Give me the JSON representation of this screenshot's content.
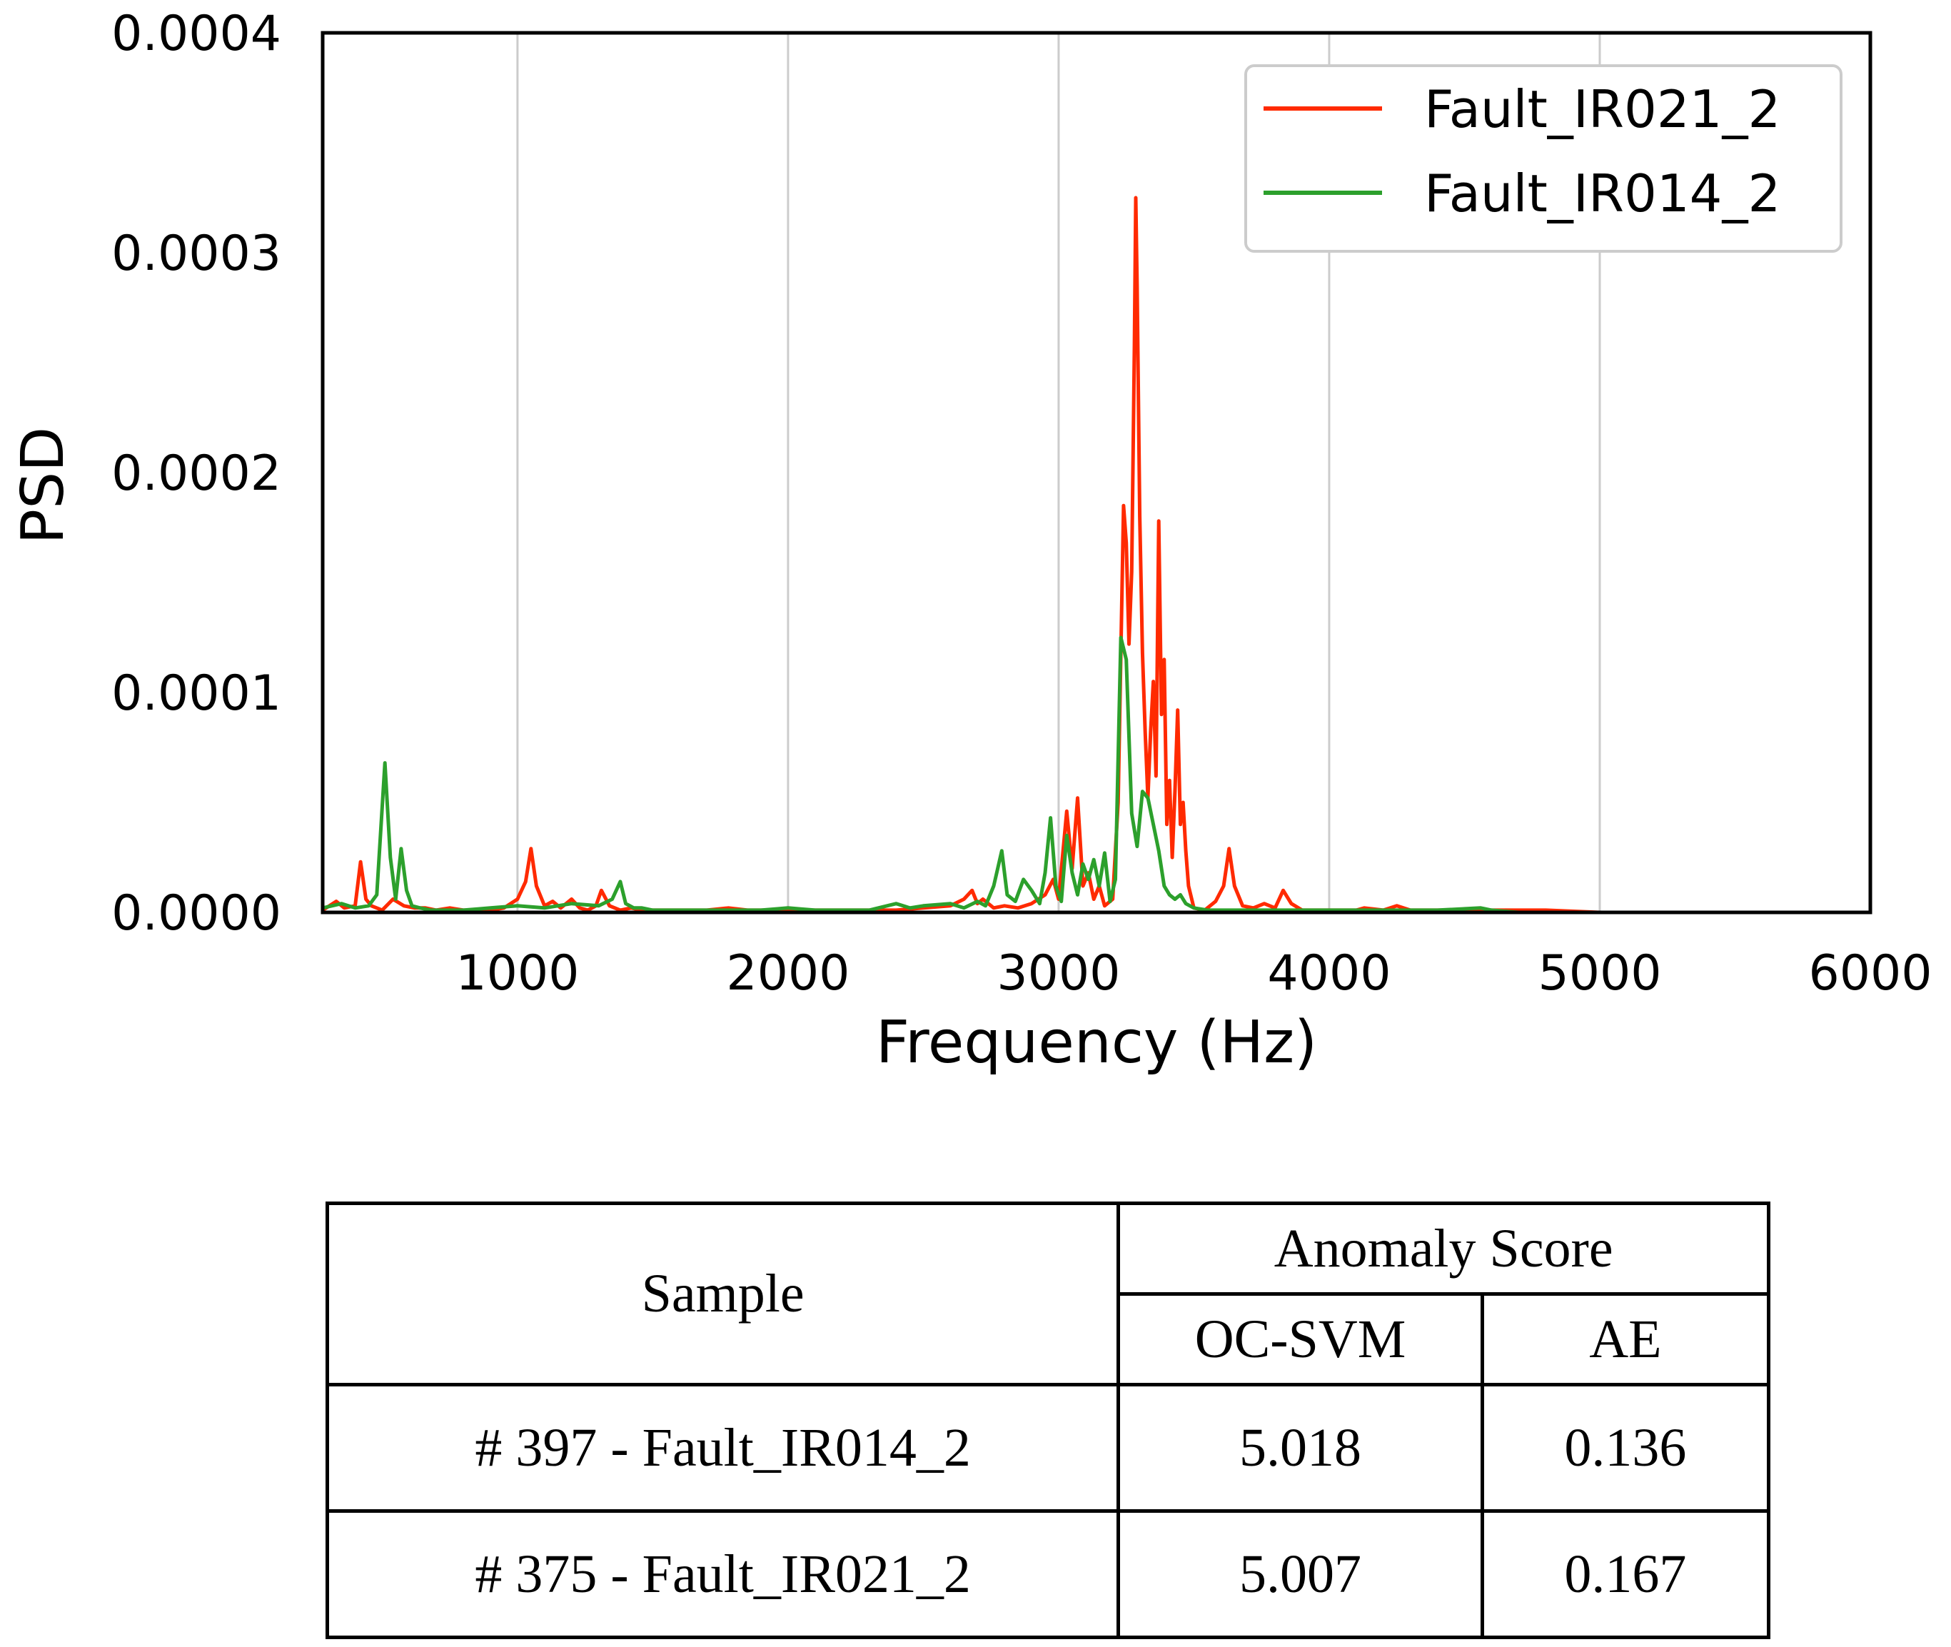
{
  "chart_data": {
    "type": "line",
    "title": "",
    "xlabel": "Frequency (Hz)",
    "ylabel": "PSD",
    "xlim": [
      280,
      6000
    ],
    "ylim": [
      0,
      0.0004
    ],
    "xticks": [
      1000,
      2000,
      3000,
      4000,
      5000,
      6000
    ],
    "xtick_labels": [
      "1000",
      "2000",
      "3000",
      "4000",
      "5000",
      "6000"
    ],
    "yticks": [
      0,
      0.0001,
      0.0002,
      0.0003,
      0.0004
    ],
    "ytick_labels": [
      "0.0000",
      "0.0001",
      "0.0002",
      "0.0003",
      "0.0004"
    ],
    "grid": "vertical",
    "legend_position": "top-right",
    "series": [
      {
        "name": "Fault_IR021_2",
        "color": "#ff2a00",
        "x": [
          280,
          330,
          360,
          400,
          420,
          440,
          460,
          480,
          500,
          540,
          580,
          620,
          660,
          700,
          750,
          800,
          850,
          900,
          950,
          1000,
          1030,
          1050,
          1070,
          1100,
          1130,
          1160,
          1200,
          1230,
          1260,
          1290,
          1310,
          1340,
          1380,
          1420,
          1460,
          1500,
          1600,
          1700,
          1780,
          1850,
          2000,
          2100,
          2200,
          2300,
          2400,
          2500,
          2600,
          2650,
          2680,
          2700,
          2720,
          2760,
          2800,
          2850,
          2900,
          2950,
          2980,
          3000,
          3030,
          3050,
          3070,
          3090,
          3110,
          3130,
          3150,
          3170,
          3200,
          3220,
          3240,
          3250,
          3260,
          3270,
          3280,
          3285,
          3290,
          3300,
          3310,
          3320,
          3330,
          3340,
          3350,
          3360,
          3370,
          3380,
          3390,
          3400,
          3410,
          3420,
          3430,
          3440,
          3450,
          3460,
          3470,
          3480,
          3500,
          3540,
          3580,
          3610,
          3630,
          3650,
          3680,
          3720,
          3760,
          3800,
          3830,
          3860,
          3900,
          4000,
          4100,
          4130,
          4200,
          4250,
          4300,
          4400,
          4500,
          4600,
          4700,
          4800,
          5000,
          5500,
          6000
        ],
        "y": [
          1e-06,
          5e-06,
          2e-06,
          3e-06,
          2.3e-05,
          6e-06,
          3e-06,
          2e-06,
          1e-06,
          6e-06,
          3e-06,
          2e-06,
          2e-06,
          1e-06,
          2e-06,
          1e-06,
          1e-06,
          1e-06,
          2e-06,
          6e-06,
          1.4e-05,
          2.9e-05,
          1.2e-05,
          3e-06,
          5e-06,
          2e-06,
          6e-06,
          2e-06,
          1e-06,
          3e-06,
          1e-05,
          3e-06,
          1e-06,
          2e-06,
          1e-06,
          1e-06,
          1e-06,
          1e-06,
          2e-06,
          1e-06,
          1e-06,
          1e-06,
          1e-06,
          1e-06,
          1e-06,
          2e-06,
          3e-06,
          6e-06,
          1e-05,
          4e-06,
          6e-06,
          2e-06,
          3e-06,
          2e-06,
          4e-06,
          8e-06,
          1.5e-05,
          6e-06,
          4.6e-05,
          2e-05,
          5.2e-05,
          1.2e-05,
          1.8e-05,
          6e-06,
          1.2e-05,
          3e-06,
          6e-06,
          5e-05,
          0.000185,
          0.000168,
          0.000122,
          0.000155,
          0.000258,
          0.000325,
          0.000285,
          0.00018,
          0.000118,
          8.2e-05,
          5.2e-05,
          8.2e-05,
          0.000105,
          6.2e-05,
          0.000178,
          9e-05,
          0.000115,
          4e-05,
          6e-05,
          2.5e-05,
          5.5e-05,
          9.2e-05,
          4e-05,
          5e-05,
          2.8e-05,
          1.2e-05,
          2e-06,
          1e-06,
          5e-06,
          1.2e-05,
          2.9e-05,
          1.2e-05,
          3e-06,
          2e-06,
          4e-06,
          2e-06,
          1e-05,
          4e-06,
          1e-06,
          1e-06,
          1e-06,
          2e-06,
          1e-06,
          3e-06,
          1e-06,
          1e-06,
          1e-06,
          1e-06,
          1e-06,
          1e-06,
          0,
          0,
          0
        ]
      },
      {
        "name": "Fault_IR014_2",
        "color": "#2ca02c",
        "x": [
          280,
          350,
          400,
          450,
          480,
          510,
          530,
          550,
          570,
          590,
          610,
          640,
          680,
          720,
          800,
          900,
          1000,
          1100,
          1200,
          1300,
          1350,
          1380,
          1400,
          1430,
          1460,
          1500,
          1600,
          1700,
          1800,
          1900,
          2000,
          2100,
          2200,
          2300,
          2400,
          2450,
          2500,
          2600,
          2650,
          2700,
          2730,
          2760,
          2790,
          2810,
          2840,
          2870,
          2900,
          2930,
          2950,
          2970,
          2990,
          3010,
          3030,
          3050,
          3070,
          3090,
          3110,
          3130,
          3150,
          3170,
          3190,
          3210,
          3230,
          3250,
          3270,
          3290,
          3310,
          3330,
          3350,
          3370,
          3390,
          3410,
          3430,
          3450,
          3470,
          3500,
          3550,
          3600,
          3700,
          3800,
          3900,
          4000,
          4200,
          4400,
          4560,
          4600,
          4700,
          5000,
          5500,
          6000
        ],
        "y": [
          2e-06,
          4e-06,
          2e-06,
          3e-06,
          8e-06,
          6.8e-05,
          2.5e-05,
          6e-06,
          2.9e-05,
          1e-05,
          3e-06,
          2e-06,
          1e-06,
          1e-06,
          1e-06,
          2e-06,
          3e-06,
          2e-06,
          4e-06,
          3e-06,
          6e-06,
          1.4e-05,
          4e-06,
          2e-06,
          2e-06,
          1e-06,
          1e-06,
          1e-06,
          1e-06,
          1e-06,
          2e-06,
          1e-06,
          1e-06,
          1e-06,
          4e-06,
          2e-06,
          3e-06,
          4e-06,
          2e-06,
          5e-06,
          3e-06,
          1.2e-05,
          2.8e-05,
          8e-06,
          5e-06,
          1.5e-05,
          1e-05,
          4e-06,
          1.8e-05,
          4.3e-05,
          1.2e-05,
          5e-06,
          3.5e-05,
          1.8e-05,
          8e-06,
          2.2e-05,
          1.5e-05,
          2.4e-05,
          1.2e-05,
          2.7e-05,
          5e-06,
          1.5e-05,
          0.000125,
          0.000115,
          4.5e-05,
          3e-05,
          5.5e-05,
          5.2e-05,
          4e-05,
          2.8e-05,
          1.2e-05,
          8e-06,
          6e-06,
          8e-06,
          4e-06,
          2e-06,
          1e-06,
          1e-06,
          1e-06,
          1e-06,
          1e-06,
          1e-06,
          1e-06,
          1e-06,
          2e-06,
          1e-06,
          0,
          0,
          0,
          0
        ]
      }
    ]
  },
  "table": {
    "header_sample": "Sample",
    "header_group": "Anomaly Score",
    "header_ocsvm": "OC-SVM",
    "header_ae": "AE",
    "rows": [
      {
        "sample": "# 397 - Fault_IR014_2",
        "ocsvm": "5.018",
        "ae": "0.136"
      },
      {
        "sample": "# 375 - Fault_IR021_2",
        "ocsvm": "5.007",
        "ae": "0.167"
      }
    ]
  }
}
